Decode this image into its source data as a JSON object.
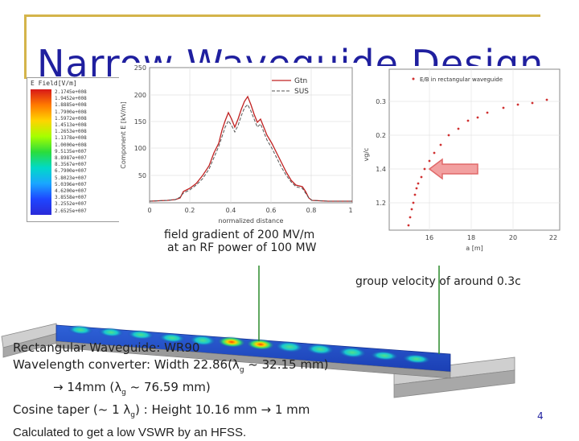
{
  "slide": {
    "title": "Narrow Waveguide Design",
    "page_number": "4"
  },
  "left_legend": {
    "title": "E Field[V/m]",
    "levels": [
      "2.1745e+008",
      "1.9452e+008",
      "1.8885e+008",
      "1.7900e+008",
      "1.5972e+008",
      "1.4513e+008",
      "1.2653e+008",
      "1.1378e+008",
      "1.0000e+008",
      "9.5135e+007",
      "8.8987e+007",
      "8.3567e+007",
      "6.7900e+007",
      "5.8023e+007",
      "5.0396e+007",
      "4.6200e+007",
      "3.8558e+007",
      "3.2552e+007",
      "2.6525e+007"
    ]
  },
  "plot1": {
    "legend": [
      "Gtn",
      "SUS"
    ],
    "ylabel": "Component E [kV/m]",
    "xlabel": "normalized distance",
    "yticks": [
      "250",
      "200",
      "150",
      "100",
      "50"
    ],
    "xticks": [
      "0",
      "0.2",
      "0.4",
      "0.6",
      "0.8",
      "1"
    ]
  },
  "plot2": {
    "legend": "E/B in rectangular waveguide",
    "ylabel": "vg/c",
    "xlabel": "a [m]",
    "yticks": [
      "0.3",
      "0.2",
      "1.4",
      "1.2"
    ],
    "xticks": [
      "16",
      "18",
      "20",
      "22"
    ]
  },
  "annotations": {
    "field_line1": "field gradient of 200 MV/m",
    "field_line2": "at an RF power of 100 MW",
    "group_velocity": "group velocity of around 0.3c"
  },
  "info": {
    "line1": "Rectangular Waveguide: WR90",
    "line2": "Wavelength converter: Width 22.86(λ",
    "line2_sub": "g",
    "line2_end": " ~ 32.15 mm)",
    "line3": "→ 14mm (λ",
    "line3_sub": "g",
    "line3_end": " ~ 76.59 mm)",
    "line4": "Cosine taper (~ 1 λ",
    "line4_sub": "g",
    "line4_end": ") : Height 10.16 mm → 1 mm",
    "line5": "Calculated to get a low VSWR by an HFSS."
  },
  "colors": {
    "title": "#1f1f9f",
    "frame": "#d4b44a",
    "curve": "#c02020",
    "points": "#d03030",
    "arrow": "#e88080",
    "line": "#2a8a2a"
  }
}
